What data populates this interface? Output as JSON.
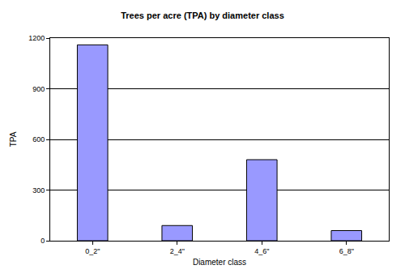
{
  "chart_data": {
    "type": "bar",
    "title": "Trees per acre (TPA) by diameter class",
    "x_label": "Diameter class",
    "y_label": "TPA",
    "categories": [
      "0_2\"",
      "2_4\"",
      "4_6\"",
      "6_8\""
    ],
    "values": [
      1160,
      90,
      480,
      60
    ],
    "color": "#9999ff",
    "ylim": [
      0,
      1200
    ],
    "yticks": [
      0,
      300,
      600,
      900,
      1200
    ],
    "grid": true
  }
}
